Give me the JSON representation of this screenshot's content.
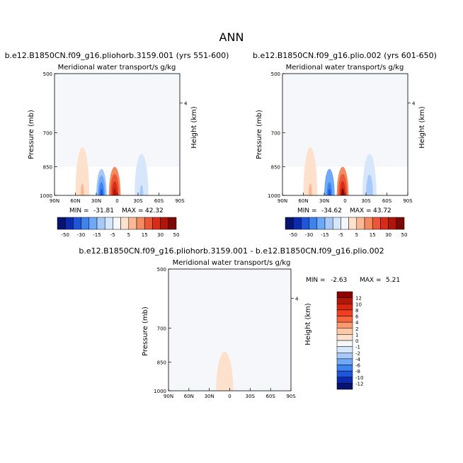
{
  "figure_title": "ANN",
  "units_note": "Meridional water transport/s g/kg",
  "chart_data": [
    {
      "type": "heatmap",
      "title": "b.e12.B1850CN.f09_g16.pliohorb.3159.001 (yrs 551-600)",
      "subtitle": "Meridional water transport/s g/kg",
      "xlabel": "",
      "ylabel": "Pressure (mb)",
      "ylabel_right": "Height (km)",
      "x_ticks": [
        "90N",
        "60N",
        "30N",
        "0",
        "30S",
        "60S",
        "90S"
      ],
      "x_values": [
        90,
        60,
        30,
        0,
        -30,
        -60,
        -90
      ],
      "y_ticks": [
        500,
        700,
        850,
        1000
      ],
      "y_right_ticks": [
        "4"
      ],
      "ylim": [
        1000,
        500
      ],
      "min_label": "MIN =",
      "min": "-31.81",
      "max_label": "MAX =",
      "max": "42.32",
      "colorbar_levels": [
        "-50",
        "-30",
        "-15",
        "-5",
        "5",
        "15",
        "30",
        "50"
      ],
      "field": [
        {
          "lat_range": [
            90,
            0
          ],
          "p_range": [
            500,
            850
          ],
          "value": 2
        },
        {
          "lat_range": [
            0,
            -90
          ],
          "p_range": [
            500,
            850
          ],
          "value": -1
        },
        {
          "lat_range": [
            60,
            40
          ],
          "p_range": [
            760,
            1000
          ],
          "value": 10
        },
        {
          "lat_range": [
            30,
            15
          ],
          "p_range": [
            860,
            1000
          ],
          "value": -30
        },
        {
          "lat_range": [
            12,
            -5
          ],
          "p_range": [
            850,
            1000
          ],
          "value": 40
        },
        {
          "lat_range": [
            -25,
            -45
          ],
          "p_range": [
            790,
            1000
          ],
          "value": -10
        }
      ]
    },
    {
      "type": "heatmap",
      "title": "b.e12.B1850CN.f09_g16.plio.002 (yrs 601-650)",
      "subtitle": "Meridional water transport/s g/kg",
      "xlabel": "",
      "ylabel": "Pressure (mb)",
      "ylabel_right": "Height (km)",
      "x_ticks": [
        "90N",
        "60N",
        "30N",
        "0",
        "30S",
        "60S",
        "90S"
      ],
      "x_values": [
        90,
        60,
        30,
        0,
        -30,
        -60,
        -90
      ],
      "y_ticks": [
        500,
        700,
        850,
        1000
      ],
      "y_right_ticks": [
        "4"
      ],
      "ylim": [
        1000,
        500
      ],
      "min_label": "MIN =",
      "min": "-34.62",
      "max_label": "MAX =",
      "max": "43.72",
      "colorbar_levels": [
        "-50",
        "-30",
        "-15",
        "-5",
        "5",
        "15",
        "30",
        "50"
      ],
      "field": [
        {
          "lat_range": [
            90,
            0
          ],
          "p_range": [
            500,
            850
          ],
          "value": 2
        },
        {
          "lat_range": [
            0,
            -90
          ],
          "p_range": [
            500,
            850
          ],
          "value": -1
        },
        {
          "lat_range": [
            60,
            40
          ],
          "p_range": [
            760,
            1000
          ],
          "value": 10
        },
        {
          "lat_range": [
            30,
            15
          ],
          "p_range": [
            860,
            1000
          ],
          "value": -32
        },
        {
          "lat_range": [
            12,
            -5
          ],
          "p_range": [
            850,
            1000
          ],
          "value": 42
        },
        {
          "lat_range": [
            -25,
            -45
          ],
          "p_range": [
            790,
            1000
          ],
          "value": -12
        }
      ]
    },
    {
      "type": "heatmap",
      "title": "b.e12.B1850CN.f09_g16.pliohorb.3159.001 - b.e12.B1850CN.f09_g16.plio.002",
      "subtitle": "Meridional water transport/s g/kg",
      "xlabel": "",
      "ylabel": "Pressure (mb)",
      "ylabel_right": "Height (km)",
      "x_ticks": [
        "90N",
        "60N",
        "30N",
        "0",
        "30S",
        "60S",
        "90S"
      ],
      "x_values": [
        90,
        60,
        30,
        0,
        -30,
        -60,
        -90
      ],
      "y_ticks": [
        500,
        700,
        850,
        1000
      ],
      "y_right_ticks": [
        "4"
      ],
      "ylim": [
        1000,
        500
      ],
      "min_label": "MIN =",
      "min": "-2.63",
      "max_label": "MAX =",
      "max": "5.21",
      "colorbar_levels": [
        "12",
        "10",
        "8",
        "6",
        "4",
        "2",
        "1",
        "0",
        "-1",
        "-2",
        "-4",
        "-6",
        "-8",
        "-10",
        "-12"
      ],
      "field": [
        {
          "lat_range": [
            90,
            -90
          ],
          "p_range": [
            500,
            1000
          ],
          "value": 0.5
        },
        {
          "lat_range": [
            20,
            -5
          ],
          "p_range": [
            800,
            1000
          ],
          "value": 2
        }
      ]
    }
  ],
  "colors": {
    "diverging_8": [
      "#08136e",
      "#0b2ab0",
      "#1f55d8",
      "#3d83ee",
      "#6fa8f6",
      "#a8c9f8",
      "#d7e7fb",
      "#f6f7fb",
      "#fde1cd",
      "#f8b994",
      "#f38a60",
      "#ea5732",
      "#d72d18",
      "#b11408",
      "#7b0a06"
    ],
    "diff_colorbar": [
      "#8b0000",
      "#b31507",
      "#d8250f",
      "#ef3f20",
      "#f8663b",
      "#fb9970",
      "#fcc8a5",
      "#fde1cd",
      "#f6f7fb",
      "#d7e7fb",
      "#a8c9f8",
      "#6fa8f6",
      "#3d83ee",
      "#1f55d8",
      "#0b2ab0",
      "#08136e"
    ]
  }
}
